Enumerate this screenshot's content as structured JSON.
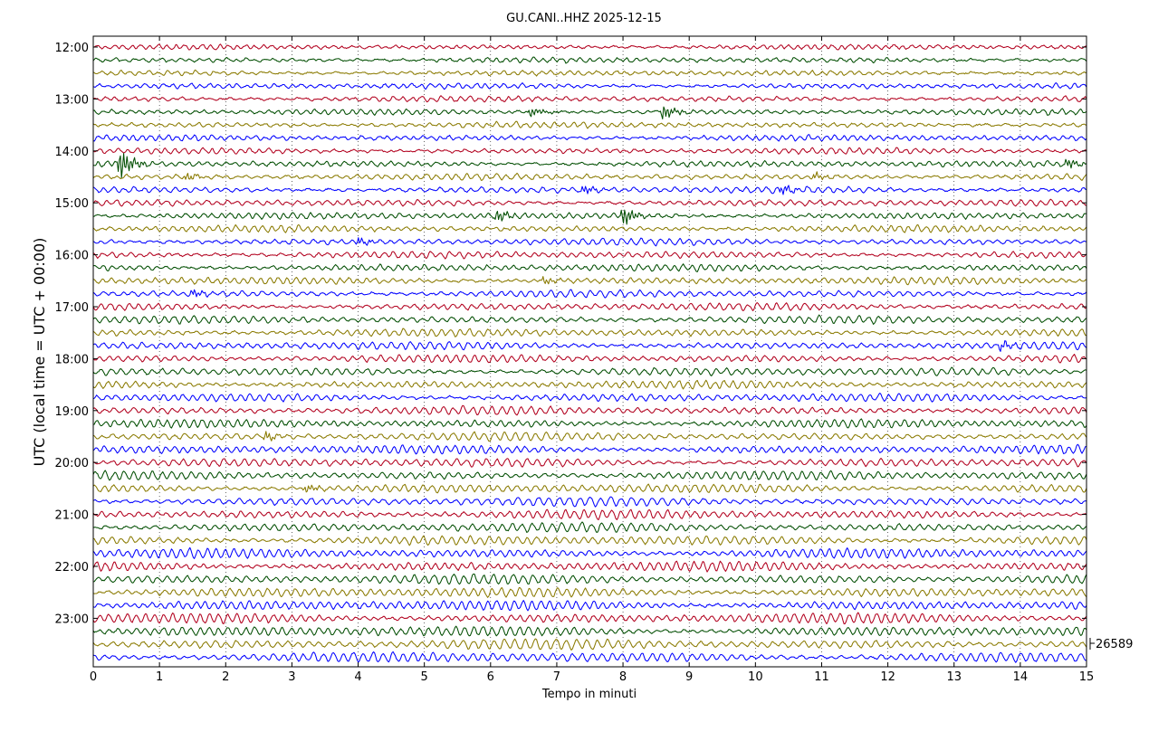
{
  "chart_data": {
    "type": "line",
    "title": "GU.CANI..HHZ 2025-12-15",
    "xlabel": "Tempo in minuti",
    "ylabel": "UTC (local time = UTC + 00:00)",
    "xlim": [
      0,
      15
    ],
    "x_ticks": [
      "0",
      "1",
      "2",
      "3",
      "4",
      "5",
      "6",
      "7",
      "8",
      "9",
      "10",
      "11",
      "12",
      "13",
      "14",
      "15"
    ],
    "y_ticks": [
      "12:00",
      "13:00",
      "14:00",
      "15:00",
      "16:00",
      "17:00",
      "18:00",
      "19:00",
      "20:00",
      "21:00",
      "22:00",
      "23:00"
    ],
    "row_start_time": "12:00",
    "row_interval_minutes": 15,
    "row_count": 48,
    "series_colors": [
      "#b2001e",
      "#004d00",
      "#8a7a00",
      "#0000ff"
    ],
    "scale_label": "26589",
    "grid": true,
    "events": [
      {
        "row": 5,
        "minute": 6.6,
        "amp": 5
      },
      {
        "row": 5,
        "minute": 8.6,
        "amp": 8
      },
      {
        "row": 9,
        "minute": 0.4,
        "amp": 16
      },
      {
        "row": 9,
        "minute": 14.7,
        "amp": 5
      },
      {
        "row": 10,
        "minute": 1.4,
        "amp": 4
      },
      {
        "row": 10,
        "minute": 10.9,
        "amp": 4
      },
      {
        "row": 11,
        "minute": 7.4,
        "amp": 5
      },
      {
        "row": 11,
        "minute": 10.4,
        "amp": 5
      },
      {
        "row": 13,
        "minute": 6.1,
        "amp": 6
      },
      {
        "row": 13,
        "minute": 8.0,
        "amp": 10
      },
      {
        "row": 15,
        "minute": 4.0,
        "amp": 4
      },
      {
        "row": 18,
        "minute": 6.8,
        "amp": 4
      },
      {
        "row": 19,
        "minute": 1.5,
        "amp": 4
      },
      {
        "row": 23,
        "minute": 13.7,
        "amp": 5
      },
      {
        "row": 30,
        "minute": 2.6,
        "amp": 5
      },
      {
        "row": 34,
        "minute": 3.2,
        "amp": 4
      }
    ]
  }
}
